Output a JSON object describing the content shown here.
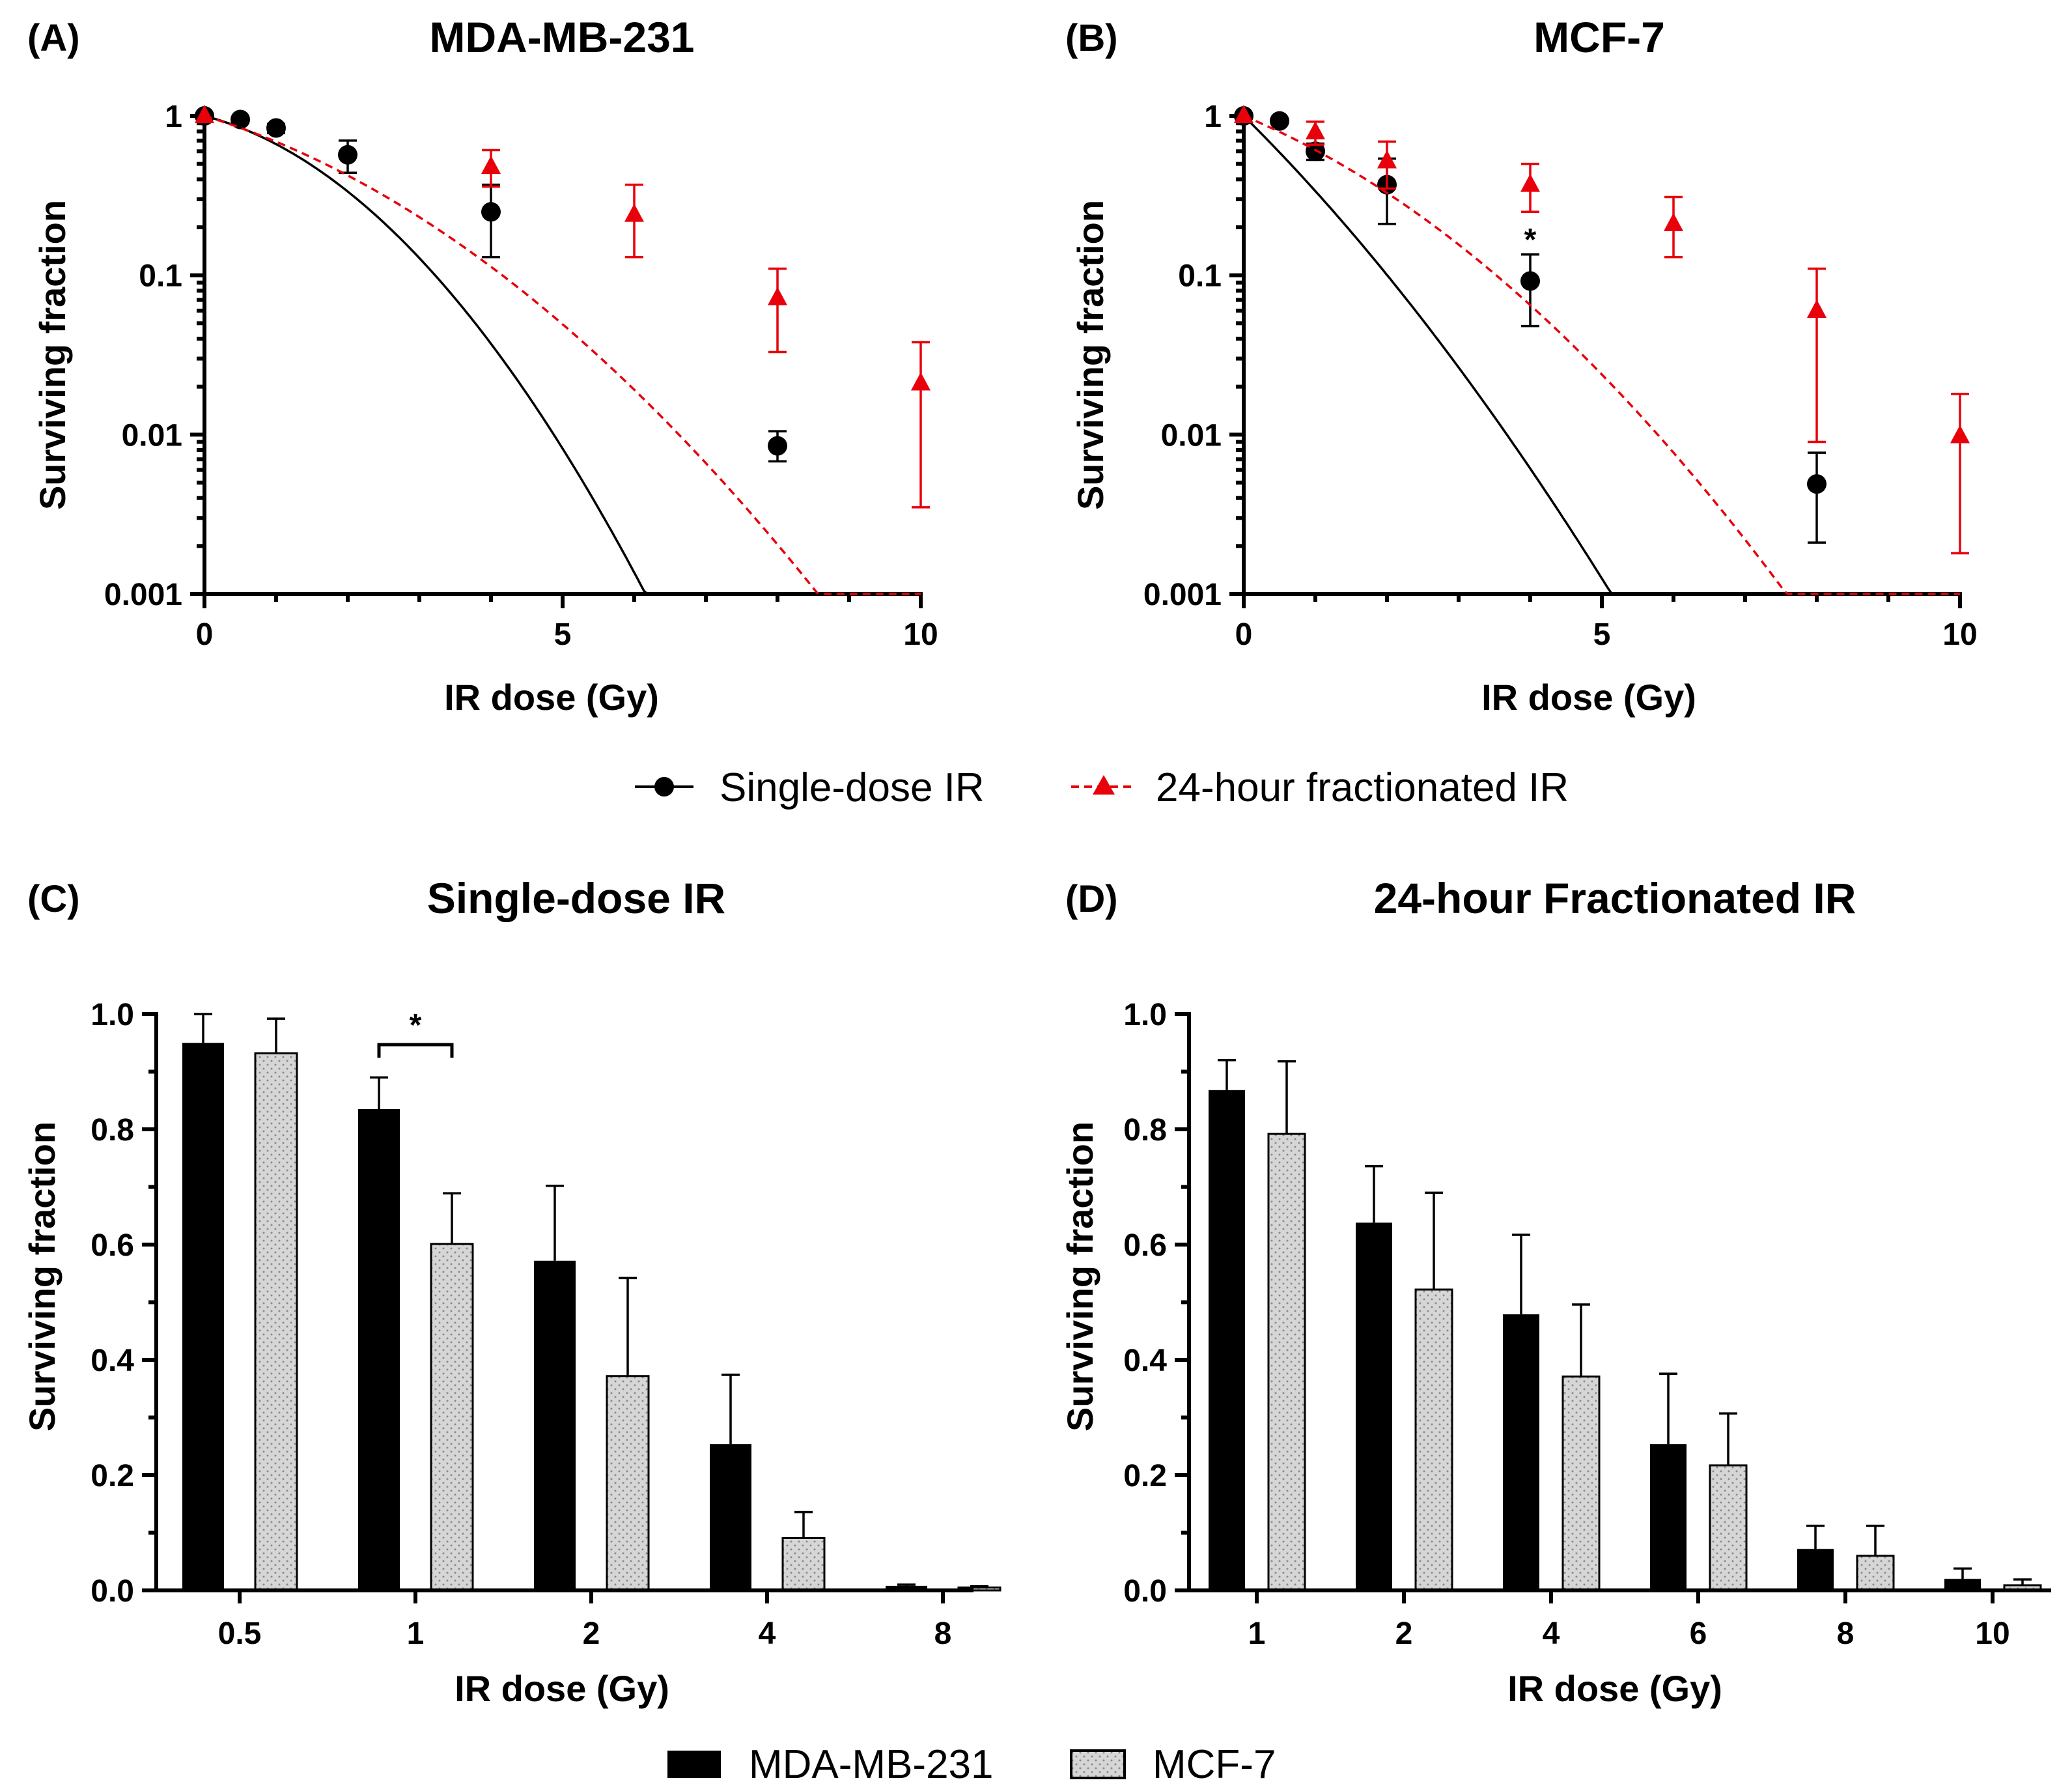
{
  "legend_top": {
    "single": "Single-dose IR",
    "fractionated": "24-hour fractionated IR"
  },
  "legend_bottom": {
    "mda": "MDA-MB-231",
    "mcf": "MCF-7"
  },
  "colors": {
    "single": "#000000",
    "fractionated": "#e8000b",
    "mda_bar": "#000000",
    "mcf_bar": "#d4d4d4"
  },
  "chart_data": [
    {
      "panel": "(A)",
      "type": "line",
      "title": "MDA-MB-231",
      "xlabel": "IR dose (Gy)",
      "ylabel": "Surviving fraction",
      "yscale": "log",
      "xlim": [
        0,
        10
      ],
      "ylim": [
        0.001,
        1
      ],
      "xticks": [
        "0",
        "5",
        "10"
      ],
      "yticks": [
        "0.001",
        "0.01",
        "0.1",
        "1"
      ],
      "series": [
        {
          "name": "Single-dose IR",
          "style": "solid-circle",
          "x": [
            0,
            0.5,
            1,
            2,
            4,
            8
          ],
          "y": [
            1,
            0.95,
            0.84,
            0.57,
            0.25,
            0.0085
          ],
          "err_low": [
            1,
            0.95,
            0.78,
            0.44,
            0.13,
            0.0068
          ],
          "err_high": [
            1,
            0.95,
            0.89,
            0.7,
            0.37,
            0.0105
          ],
          "fit": {
            "alpha": 0.117,
            "beta": 0.0601,
            "xmax": 9.9
          },
          "annotations": []
        },
        {
          "name": "24-hour fractionated IR",
          "style": "dashed-triangle",
          "x": [
            0,
            4,
            6,
            8,
            10
          ],
          "y": [
            1,
            0.48,
            0.24,
            0.072,
            0.021
          ],
          "err_low": [
            1,
            0.36,
            0.13,
            0.033,
            0.0035
          ],
          "err_high": [
            1,
            0.61,
            0.37,
            0.11,
            0.038
          ],
          "fit": {
            "alpha": 0.137,
            "beta": 0.0249,
            "xmax": 10
          },
          "annotations": []
        }
      ]
    },
    {
      "panel": "(B)",
      "type": "line",
      "title": "MCF-7",
      "xlabel": "IR dose (Gy)",
      "ylabel": "Surviving fraction",
      "yscale": "log",
      "xlim": [
        0,
        10
      ],
      "ylim": [
        0.001,
        1
      ],
      "xticks": [
        "0",
        "5",
        "10"
      ],
      "yticks": [
        "0.001",
        "0.01",
        "0.1",
        "1"
      ],
      "series": [
        {
          "name": "Single-dose IR",
          "style": "solid-circle",
          "x": [
            0,
            0.5,
            1,
            2,
            4,
            8
          ],
          "y": [
            1,
            0.93,
            0.6,
            0.37,
            0.092,
            0.0049
          ],
          "err_low": [
            1,
            0.93,
            0.53,
            0.21,
            0.048,
            0.0021
          ],
          "err_high": [
            1,
            0.93,
            0.67,
            0.54,
            0.135,
            0.0077
          ],
          "fit": {
            "alpha": 0.4445,
            "beta": 0.0272,
            "xmax": 9.7
          },
          "annotations": [
            {
              "x": 4,
              "y": 0.18,
              "text": "*"
            }
          ]
        },
        {
          "name": "24-hour fractionated IR",
          "style": "dashed-triangle",
          "x": [
            0,
            1,
            2,
            4,
            6,
            8,
            10
          ],
          "y": [
            1,
            0.79,
            0.52,
            0.37,
            0.21,
            0.06,
            0.0098
          ],
          "err_low": [
            1,
            0.66,
            0.35,
            0.25,
            0.13,
            0.009,
            0.0018
          ],
          "err_high": [
            1,
            0.92,
            0.69,
            0.5,
            0.31,
            0.11,
            0.018
          ],
          "fit": {
            "alpha": 0.186,
            "beta": 0.0277,
            "xmax": 10
          },
          "annotations": []
        }
      ]
    },
    {
      "panel": "(C)",
      "type": "bar",
      "title": "Single-dose IR",
      "xlabel": "IR dose (Gy)",
      "ylabel": "Surviving fraction",
      "ylim": [
        0,
        1.0
      ],
      "yticks": [
        "0.0",
        "0.2",
        "0.4",
        "0.6",
        "0.8",
        "1.0"
      ],
      "categories": [
        "0.5",
        "1",
        "2",
        "4",
        "8"
      ],
      "series": [
        {
          "name": "MDA-MB-231",
          "values": [
            0.95,
            0.835,
            0.572,
            0.254,
            0.008
          ],
          "errors": [
            0.05,
            0.055,
            0.13,
            0.12,
            0.002
          ]
        },
        {
          "name": "MCF-7",
          "values": [
            0.932,
            0.601,
            0.372,
            0.091,
            0.005
          ],
          "errors": [
            0.06,
            0.088,
            0.17,
            0.045,
            0.002
          ]
        }
      ],
      "significance": [
        {
          "category": "1",
          "text": "*"
        }
      ]
    },
    {
      "panel": "(D)",
      "type": "bar",
      "title": "24-hour Fractionated IR",
      "xlabel": "IR dose (Gy)",
      "ylabel": "Surviving fraction",
      "ylim": [
        0,
        1.0
      ],
      "yticks": [
        "0.0",
        "0.2",
        "0.4",
        "0.6",
        "0.8",
        "1.0"
      ],
      "categories": [
        "1",
        "2",
        "4",
        "6",
        "8",
        "10"
      ],
      "series": [
        {
          "name": "MDA-MB-231",
          "values": [
            0.868,
            0.638,
            0.479,
            0.254,
            0.072,
            0.02
          ],
          "errors": [
            0.052,
            0.098,
            0.138,
            0.122,
            0.04,
            0.018
          ]
        },
        {
          "name": "MCF-7",
          "values": [
            0.792,
            0.522,
            0.371,
            0.217,
            0.06,
            0.009
          ],
          "errors": [
            0.126,
            0.168,
            0.125,
            0.09,
            0.052,
            0.01
          ]
        }
      ],
      "significance": []
    }
  ]
}
